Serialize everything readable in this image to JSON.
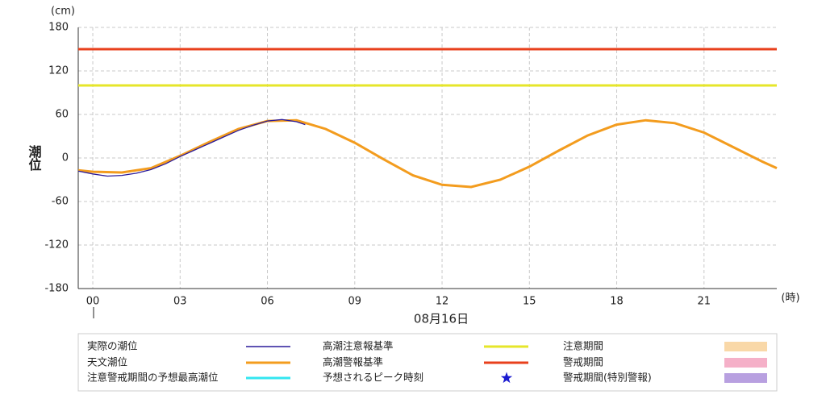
{
  "chart_data": {
    "type": "line",
    "y_unit": "(cm)",
    "x_unit": "(時)",
    "ylabel": "潮位",
    "date": "08月16日",
    "xlim": [
      -0.5,
      23.5
    ],
    "ylim": [
      -180,
      180
    ],
    "yticks": [
      -180,
      -120,
      -60,
      0,
      60,
      120,
      180
    ],
    "xticks": [
      {
        "value": 0,
        "label": "00"
      },
      {
        "value": 3,
        "label": "03"
      },
      {
        "value": 6,
        "label": "06"
      },
      {
        "value": 9,
        "label": "09"
      },
      {
        "value": 12,
        "label": "12"
      },
      {
        "value": 15,
        "label": "15"
      },
      {
        "value": 18,
        "label": "18"
      },
      {
        "value": 21,
        "label": "21"
      }
    ],
    "grid": true,
    "series": [
      {
        "name": "実際の潮位",
        "color": "#2a1a9a",
        "marker": "line",
        "x": [
          -0.5,
          0,
          0.5,
          1,
          1.5,
          2,
          2.5,
          3,
          3.5,
          4,
          4.5,
          5,
          5.5,
          6,
          6.5,
          7,
          7.3
        ],
        "values": [
          -18,
          -22,
          -25,
          -24,
          -21,
          -16,
          -8,
          2,
          11,
          20,
          29,
          38,
          45,
          51,
          53,
          50,
          46
        ]
      },
      {
        "name": "天文潮位",
        "color": "#f39c1e",
        "marker": "line",
        "x": [
          -0.5,
          0,
          1,
          2,
          3,
          4,
          5,
          6,
          7,
          8,
          9,
          10,
          11,
          12,
          13,
          14,
          15,
          16,
          17,
          18,
          19,
          20,
          21,
          22,
          23,
          23.5
        ],
        "values": [
          -17,
          -19,
          -20,
          -14,
          3,
          22,
          40,
          51,
          52,
          40,
          21,
          -2,
          -24,
          -37,
          -40,
          -30,
          -12,
          10,
          31,
          46,
          52,
          48,
          35,
          15,
          -5,
          -14
        ]
      },
      {
        "name": "注意警戒期間の予想最高潮位",
        "color": "#33e6f0",
        "marker": "line"
      },
      {
        "name": "高潮注意報基準",
        "color": "#e6e62a",
        "marker": "line",
        "value": 100
      },
      {
        "name": "高潮警報基準",
        "color": "#e8401c",
        "marker": "line",
        "value": 150
      },
      {
        "name": "予想されるピーク時刻",
        "color": "#1a1ad0",
        "marker": "star"
      },
      {
        "name": "注意期間",
        "color": "#f9d8a8",
        "marker": "box"
      },
      {
        "name": "警戒期間",
        "color": "#f5b0c8",
        "marker": "box"
      },
      {
        "name": "警戒期間(特別警報)",
        "color": "#b8a0e0",
        "marker": "box"
      }
    ]
  }
}
